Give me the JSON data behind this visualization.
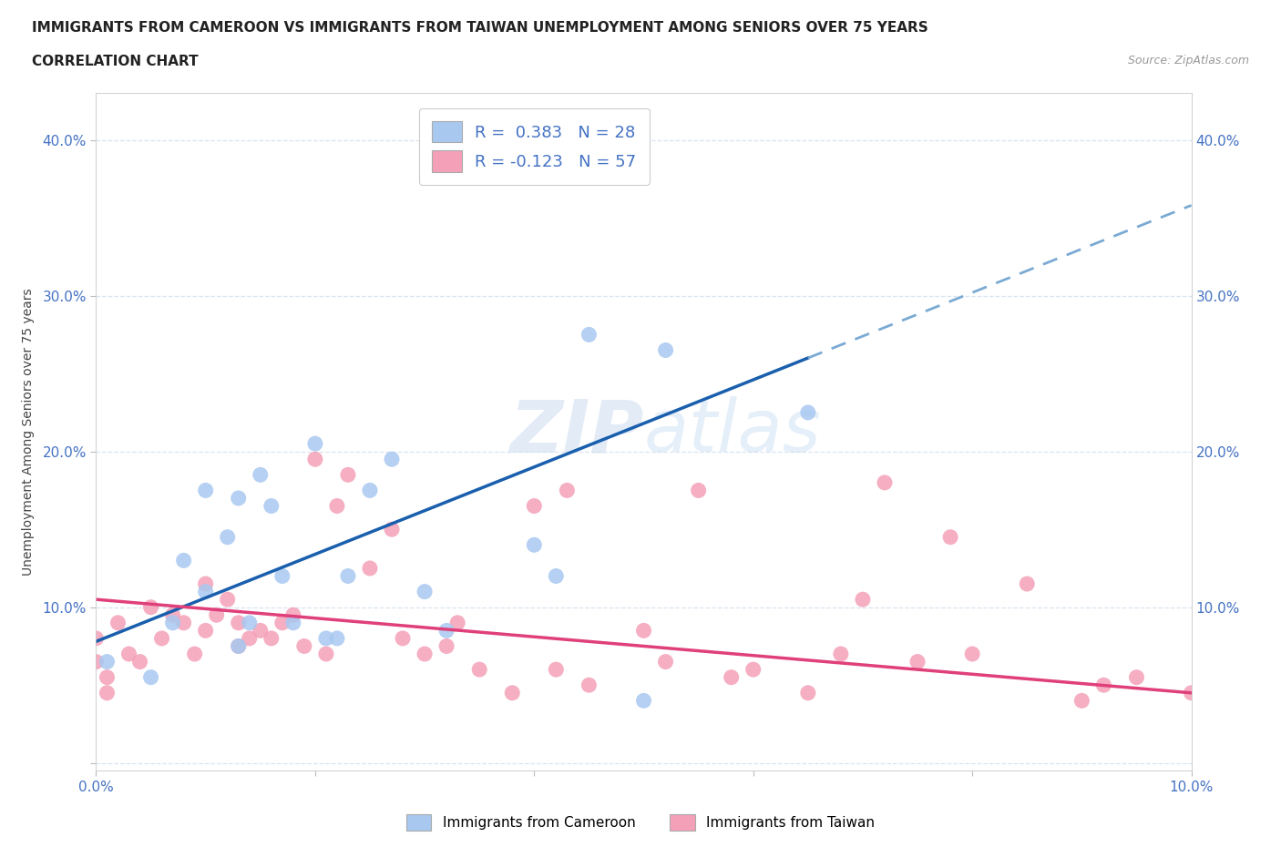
{
  "title_line1": "IMMIGRANTS FROM CAMEROON VS IMMIGRANTS FROM TAIWAN UNEMPLOYMENT AMONG SENIORS OVER 75 YEARS",
  "title_line2": "CORRELATION CHART",
  "source": "Source: ZipAtlas.com",
  "ylabel": "Unemployment Among Seniors over 75 years",
  "watermark": "ZIPatlas",
  "xlim": [
    0.0,
    0.1
  ],
  "ylim": [
    -0.005,
    0.43
  ],
  "xtick_positions": [
    0.0,
    0.02,
    0.04,
    0.06,
    0.08,
    0.1
  ],
  "xtick_labels": [
    "0.0%",
    "",
    "",
    "",
    "",
    "10.0%"
  ],
  "ytick_positions": [
    0.0,
    0.1,
    0.2,
    0.3,
    0.4
  ],
  "ytick_labels": [
    "",
    "10.0%",
    "20.0%",
    "30.0%",
    "40.0%"
  ],
  "cameroon_color": "#a8c8f0",
  "taiwan_color": "#f4a0b8",
  "cameroon_line_color": "#1a5fad",
  "taiwan_line_color": "#e0407a",
  "cameroon_dash_color": "#7aaad4",
  "r_cameroon": 0.383,
  "n_cameroon": 28,
  "r_taiwan": -0.123,
  "n_taiwan": 57,
  "cameroon_x": [
    0.001,
    0.005,
    0.007,
    0.008,
    0.01,
    0.01,
    0.012,
    0.013,
    0.013,
    0.014,
    0.015,
    0.016,
    0.017,
    0.018,
    0.02,
    0.021,
    0.022,
    0.023,
    0.025,
    0.027,
    0.03,
    0.032,
    0.04,
    0.042,
    0.045,
    0.05,
    0.052,
    0.065
  ],
  "cameroon_y": [
    0.065,
    0.055,
    0.09,
    0.13,
    0.175,
    0.11,
    0.145,
    0.075,
    0.17,
    0.09,
    0.185,
    0.165,
    0.12,
    0.09,
    0.205,
    0.08,
    0.08,
    0.12,
    0.175,
    0.195,
    0.11,
    0.085,
    0.14,
    0.12,
    0.275,
    0.04,
    0.265,
    0.225
  ],
  "taiwan_x": [
    0.0,
    0.0,
    0.001,
    0.001,
    0.002,
    0.003,
    0.004,
    0.005,
    0.006,
    0.007,
    0.008,
    0.009,
    0.01,
    0.01,
    0.011,
    0.012,
    0.013,
    0.013,
    0.014,
    0.015,
    0.016,
    0.017,
    0.018,
    0.019,
    0.02,
    0.021,
    0.022,
    0.023,
    0.025,
    0.027,
    0.028,
    0.03,
    0.032,
    0.033,
    0.035,
    0.038,
    0.04,
    0.042,
    0.043,
    0.045,
    0.05,
    0.052,
    0.055,
    0.058,
    0.06,
    0.065,
    0.068,
    0.07,
    0.072,
    0.075,
    0.078,
    0.08,
    0.085,
    0.09,
    0.092,
    0.095,
    0.1
  ],
  "taiwan_y": [
    0.065,
    0.08,
    0.045,
    0.055,
    0.09,
    0.07,
    0.065,
    0.1,
    0.08,
    0.095,
    0.09,
    0.07,
    0.115,
    0.085,
    0.095,
    0.105,
    0.075,
    0.09,
    0.08,
    0.085,
    0.08,
    0.09,
    0.095,
    0.075,
    0.195,
    0.07,
    0.165,
    0.185,
    0.125,
    0.15,
    0.08,
    0.07,
    0.075,
    0.09,
    0.06,
    0.045,
    0.165,
    0.06,
    0.175,
    0.05,
    0.085,
    0.065,
    0.175,
    0.055,
    0.06,
    0.045,
    0.07,
    0.105,
    0.18,
    0.065,
    0.145,
    0.07,
    0.115,
    0.04,
    0.05,
    0.055,
    0.045
  ],
  "title_fontsize": 11,
  "tick_color": "#4472c4",
  "grid_color": "#d8e4f0",
  "legend_r_color": "#4472c4",
  "cam_line_intercept": 0.078,
  "cam_line_slope": 2.8,
  "tai_line_intercept": 0.105,
  "tai_line_slope": -0.6
}
